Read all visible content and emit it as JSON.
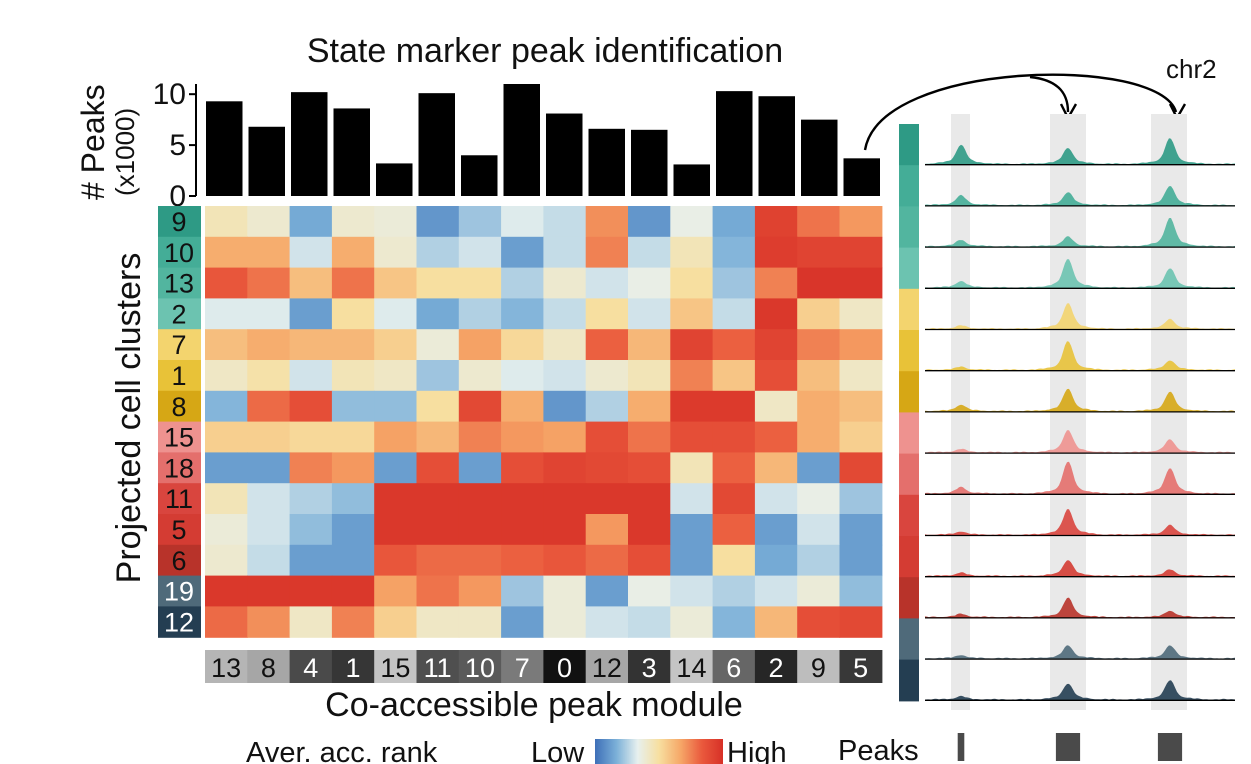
{
  "chart_data": [
    {
      "type": "bar",
      "title": "State marker peak identification",
      "ylabel": "# Peaks",
      "ylabel_unit": "(x1000)",
      "ylim": [
        0,
        11
      ],
      "yticks": [
        0,
        5,
        10
      ],
      "categories": [
        "13",
        "8",
        "4",
        "1",
        "15",
        "11",
        "10",
        "7",
        "0",
        "12",
        "3",
        "14",
        "6",
        "2",
        "9",
        "5"
      ],
      "values": [
        9.3,
        6.8,
        10.2,
        8.6,
        3.2,
        10.1,
        4.0,
        11.0,
        8.1,
        6.6,
        6.5,
        3.1,
        10.3,
        9.8,
        7.5,
        3.7
      ]
    },
    {
      "type": "heatmap",
      "ylabel": "Projected cell clusters",
      "xlabel": "Co-accessible peak module",
      "rows": [
        "9",
        "10",
        "13",
        "2",
        "7",
        "1",
        "8",
        "15",
        "18",
        "11",
        "5",
        "6",
        "19",
        "12"
      ],
      "row_colors": [
        "#2e9a85",
        "#44ad97",
        "#52b59f",
        "#6cc3b0",
        "#f3d46e",
        "#e8c238",
        "#d6a715",
        "#ee928f",
        "#e46f6c",
        "#d9453e",
        "#d43c33",
        "#b8332a",
        "#4f6a7a",
        "#243e52"
      ],
      "columns": [
        "13",
        "8",
        "4",
        "1",
        "15",
        "11",
        "10",
        "7",
        "0",
        "12",
        "3",
        "14",
        "6",
        "2",
        "9",
        "5"
      ],
      "column_colors": [
        "#b5b5b5",
        "#a6a6a6",
        "#4a4a4a",
        "#363636",
        "#c4c4c4",
        "#4f4f4f",
        "#5a5a5a",
        "#7a7a7a",
        "#111111",
        "#a6a6a6",
        "#333333",
        "#c4c4c4",
        "#666666",
        "#262626",
        "#bdbdbd",
        "#383838"
      ],
      "values": [
        [
          0.45,
          0.4,
          0.15,
          0.4,
          0.38,
          0.1,
          0.22,
          0.32,
          0.28,
          0.72,
          0.1,
          0.35,
          0.15,
          0.93,
          0.78,
          0.7
        ],
        [
          0.65,
          0.65,
          0.3,
          0.65,
          0.4,
          0.25,
          0.3,
          0.12,
          0.28,
          0.75,
          0.28,
          0.45,
          0.18,
          0.95,
          0.92,
          0.92
        ],
        [
          0.85,
          0.78,
          0.6,
          0.78,
          0.58,
          0.5,
          0.5,
          0.25,
          0.4,
          0.3,
          0.35,
          0.5,
          0.22,
          0.75,
          0.98,
          0.98
        ],
        [
          0.32,
          0.32,
          0.12,
          0.5,
          0.32,
          0.15,
          0.25,
          0.18,
          0.28,
          0.5,
          0.3,
          0.58,
          0.28,
          0.97,
          0.55,
          0.42
        ],
        [
          0.6,
          0.65,
          0.62,
          0.62,
          0.55,
          0.38,
          0.68,
          0.52,
          0.42,
          0.82,
          0.62,
          0.92,
          0.82,
          0.92,
          0.75,
          0.7
        ],
        [
          0.42,
          0.48,
          0.3,
          0.45,
          0.42,
          0.22,
          0.4,
          0.32,
          0.3,
          0.4,
          0.45,
          0.75,
          0.58,
          0.88,
          0.6,
          0.42
        ],
        [
          0.18,
          0.8,
          0.88,
          0.2,
          0.2,
          0.5,
          0.9,
          0.65,
          0.1,
          0.25,
          0.65,
          0.96,
          0.96,
          0.42,
          0.65,
          0.6
        ],
        [
          0.55,
          0.55,
          0.52,
          0.52,
          0.68,
          0.62,
          0.75,
          0.7,
          0.68,
          0.88,
          0.78,
          0.88,
          0.88,
          0.82,
          0.65,
          0.55
        ],
        [
          0.12,
          0.12,
          0.75,
          0.7,
          0.12,
          0.88,
          0.12,
          0.88,
          0.92,
          0.9,
          0.88,
          0.45,
          0.82,
          0.62,
          0.12,
          0.9
        ],
        [
          0.45,
          0.3,
          0.25,
          0.2,
          0.97,
          0.97,
          0.97,
          0.97,
          0.97,
          0.97,
          0.97,
          0.3,
          0.9,
          0.3,
          0.35,
          0.22
        ],
        [
          0.38,
          0.3,
          0.2,
          0.12,
          0.97,
          0.97,
          0.97,
          0.97,
          0.97,
          0.7,
          0.97,
          0.12,
          0.82,
          0.12,
          0.3,
          0.12
        ],
        [
          0.4,
          0.28,
          0.12,
          0.12,
          0.85,
          0.8,
          0.8,
          0.82,
          0.85,
          0.8,
          0.88,
          0.12,
          0.5,
          0.15,
          0.25,
          0.12
        ],
        [
          0.97,
          0.97,
          0.97,
          0.97,
          0.68,
          0.78,
          0.7,
          0.22,
          0.38,
          0.12,
          0.35,
          0.3,
          0.25,
          0.3,
          0.38,
          0.2
        ],
        [
          0.8,
          0.72,
          0.42,
          0.75,
          0.55,
          0.42,
          0.42,
          0.12,
          0.38,
          0.3,
          0.28,
          0.38,
          0.18,
          0.62,
          0.88,
          0.9
        ]
      ],
      "legend": {
        "label": "Aver. acc. rank",
        "low": "Low",
        "high": "High"
      },
      "colormap": [
        "#3e6fb8",
        "#7bb0d8",
        "#e7f0ee",
        "#f7dfa0",
        "#f6a868",
        "#ea5a3d",
        "#d73027"
      ]
    },
    {
      "type": "area",
      "label": "chr2",
      "peaks_label": "Peaks",
      "tracks": [
        "9",
        "10",
        "13",
        "2",
        "7",
        "1",
        "8",
        "15",
        "18",
        "11",
        "5",
        "6",
        "19",
        "12"
      ],
      "track_colors": [
        "#2e9a85",
        "#44ad97",
        "#52b59f",
        "#6cc3b0",
        "#f3d46e",
        "#e8c238",
        "#d6a715",
        "#ee928f",
        "#e46f6c",
        "#d9453e",
        "#d43c33",
        "#b8332a",
        "#4f6a7a",
        "#243e52"
      ],
      "peak_heights": [
        [
          0.6,
          0.5,
          0.8
        ],
        [
          0.3,
          0.4,
          0.6
        ],
        [
          0.2,
          0.3,
          0.9
        ],
        [
          0.2,
          0.9,
          0.6
        ],
        [
          0.1,
          0.8,
          0.3
        ],
        [
          0.1,
          0.9,
          0.3
        ],
        [
          0.2,
          0.7,
          0.6
        ],
        [
          0.1,
          0.7,
          0.4
        ],
        [
          0.2,
          1.0,
          0.8
        ],
        [
          0.1,
          0.8,
          0.3
        ],
        [
          0.1,
          0.5,
          0.2
        ],
        [
          0.1,
          0.6,
          0.2
        ],
        [
          0.1,
          0.4,
          0.4
        ],
        [
          0.1,
          0.5,
          0.6
        ]
      ],
      "peak_region_widths": [
        0.15,
        0.55,
        0.55
      ]
    }
  ]
}
